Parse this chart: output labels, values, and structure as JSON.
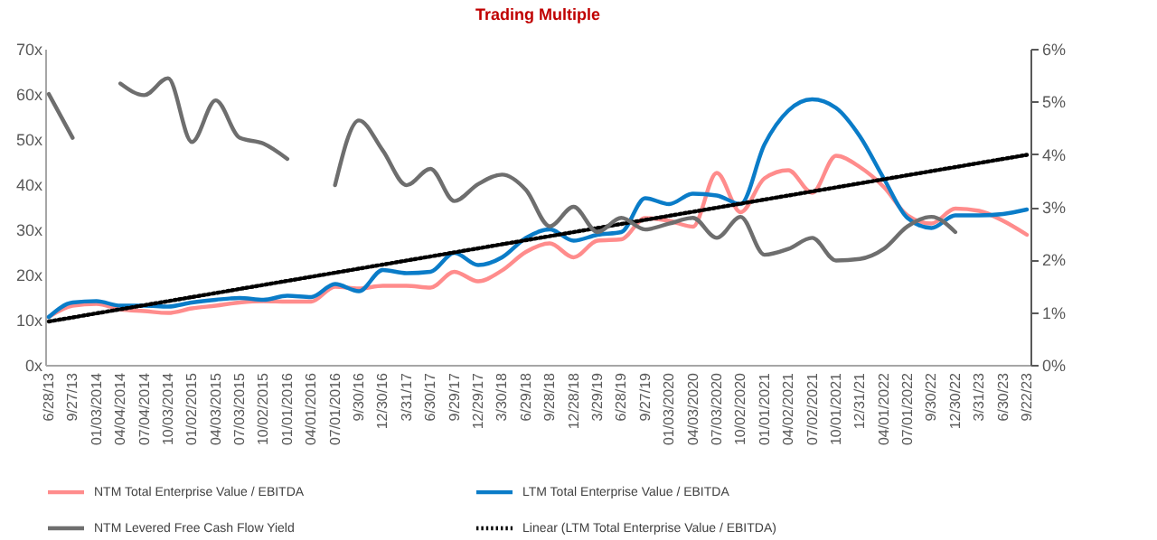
{
  "chart_data": {
    "type": "line",
    "title": "Trading Multiple",
    "categories": [
      "6/28/13",
      "9/27/13",
      "01/03/2014",
      "04/04/2014",
      "07/04/2014",
      "10/03/2014",
      "01/02/2015",
      "04/03/2015",
      "07/03/2015",
      "10/02/2015",
      "01/01/2016",
      "04/01/2016",
      "07/01/2016",
      "9/30/16",
      "12/30/16",
      "3/31/17",
      "6/30/17",
      "9/29/17",
      "12/29/17",
      "3/30/18",
      "6/29/18",
      "9/28/18",
      "12/28/18",
      "3/29/19",
      "6/28/19",
      "9/27/19",
      "01/03/2020",
      "04/03/2020",
      "07/03/2020",
      "10/02/2020",
      "01/01/2021",
      "04/02/2021",
      "07/02/2021",
      "10/01/2021",
      "12/31/21",
      "04/01/2022",
      "07/01/2022",
      "9/30/22",
      "12/30/22",
      "3/31/23",
      "6/30/23",
      "9/22/23"
    ],
    "series": [
      {
        "name": "NTM Total Enterprise Value / EBITDA",
        "color": "#ff8c8c",
        "line_style": "solid",
        "values": [
          10.6,
          13.1,
          13.5,
          12.3,
          11.9,
          11.5,
          12.5,
          13.1,
          13.8,
          14.1,
          14,
          14,
          17.3,
          16.9,
          17.5,
          17.5,
          17.1,
          20.6,
          18.5,
          20.9,
          25,
          26.9,
          23.8,
          27.5,
          27.8,
          32.5,
          31.9,
          30.6,
          42.5,
          33.8,
          41.3,
          43.1,
          38.1,
          46.3,
          43.8,
          39.4,
          33.1,
          31.3,
          34.6,
          34.1,
          31.9,
          28.8
        ]
      },
      {
        "name": "LTM Total Enterprise Value / EBITDA",
        "color": "#0a7cc8",
        "line_style": "solid",
        "values": [
          10.6,
          13.8,
          14.1,
          13.1,
          13.1,
          12.9,
          13.8,
          14.4,
          14.8,
          14.4,
          15.3,
          15,
          17.9,
          16.3,
          21,
          20.3,
          20.6,
          24.8,
          22.1,
          23.8,
          28.1,
          30,
          27.5,
          28.8,
          29.4,
          36.9,
          35.6,
          37.9,
          37.5,
          35.6,
          48.8,
          56.3,
          58.8,
          56.9,
          50.6,
          41.3,
          32.5,
          30.3,
          33.1,
          33.1,
          33.4,
          34.4
        ]
      },
      {
        "name": "NTM Levered Free Cash Flow Yield",
        "color": "#6e6e6e",
        "line_style": "solid",
        "axis": "y2",
        "values": [
          5.14,
          4.31,
          null,
          5.34,
          5.12,
          5.44,
          4.23,
          5.02,
          4.31,
          4.2,
          3.91,
          null,
          3.41,
          4.64,
          4.07,
          3.41,
          3.72,
          3.11,
          3.43,
          3.61,
          3.32,
          2.63,
          3.0,
          2.52,
          2.79,
          2.57,
          2.68,
          2.79,
          2.41,
          2.81,
          2.09,
          2.2,
          2.41,
          1.98,
          2.01,
          2.2,
          2.63,
          2.81,
          2.52,
          null,
          null,
          null
        ]
      },
      {
        "name": "Linear (LTM Total Enterprise Value / EBITDA)",
        "type": "line",
        "color": "#000000",
        "line_style": "dotted",
        "x": [
          "6/28/13",
          "9/22/23"
        ],
        "values": [
          9.6,
          46.5
        ]
      }
    ],
    "ylim": [
      0,
      70
    ],
    "yticks": [
      {
        "value": 0,
        "label": "0x"
      },
      {
        "value": 10,
        "label": "10x"
      },
      {
        "value": 20,
        "label": "20x"
      },
      {
        "value": 30,
        "label": "30x"
      },
      {
        "value": 40,
        "label": "40x"
      },
      {
        "value": 50,
        "label": "50x"
      },
      {
        "value": 60,
        "label": "60x"
      },
      {
        "value": 70,
        "label": "70x"
      }
    ],
    "y2lim": [
      0,
      6
    ],
    "y2ticks": [
      {
        "value": 0,
        "label": "0%"
      },
      {
        "value": 1,
        "label": "1%"
      },
      {
        "value": 2,
        "label": "2%"
      },
      {
        "value": 3,
        "label": "3%"
      },
      {
        "value": 4,
        "label": "4%"
      },
      {
        "value": 5,
        "label": "5%"
      },
      {
        "value": 6,
        "label": "6%"
      }
    ],
    "legend": "bottom",
    "grid": false
  }
}
